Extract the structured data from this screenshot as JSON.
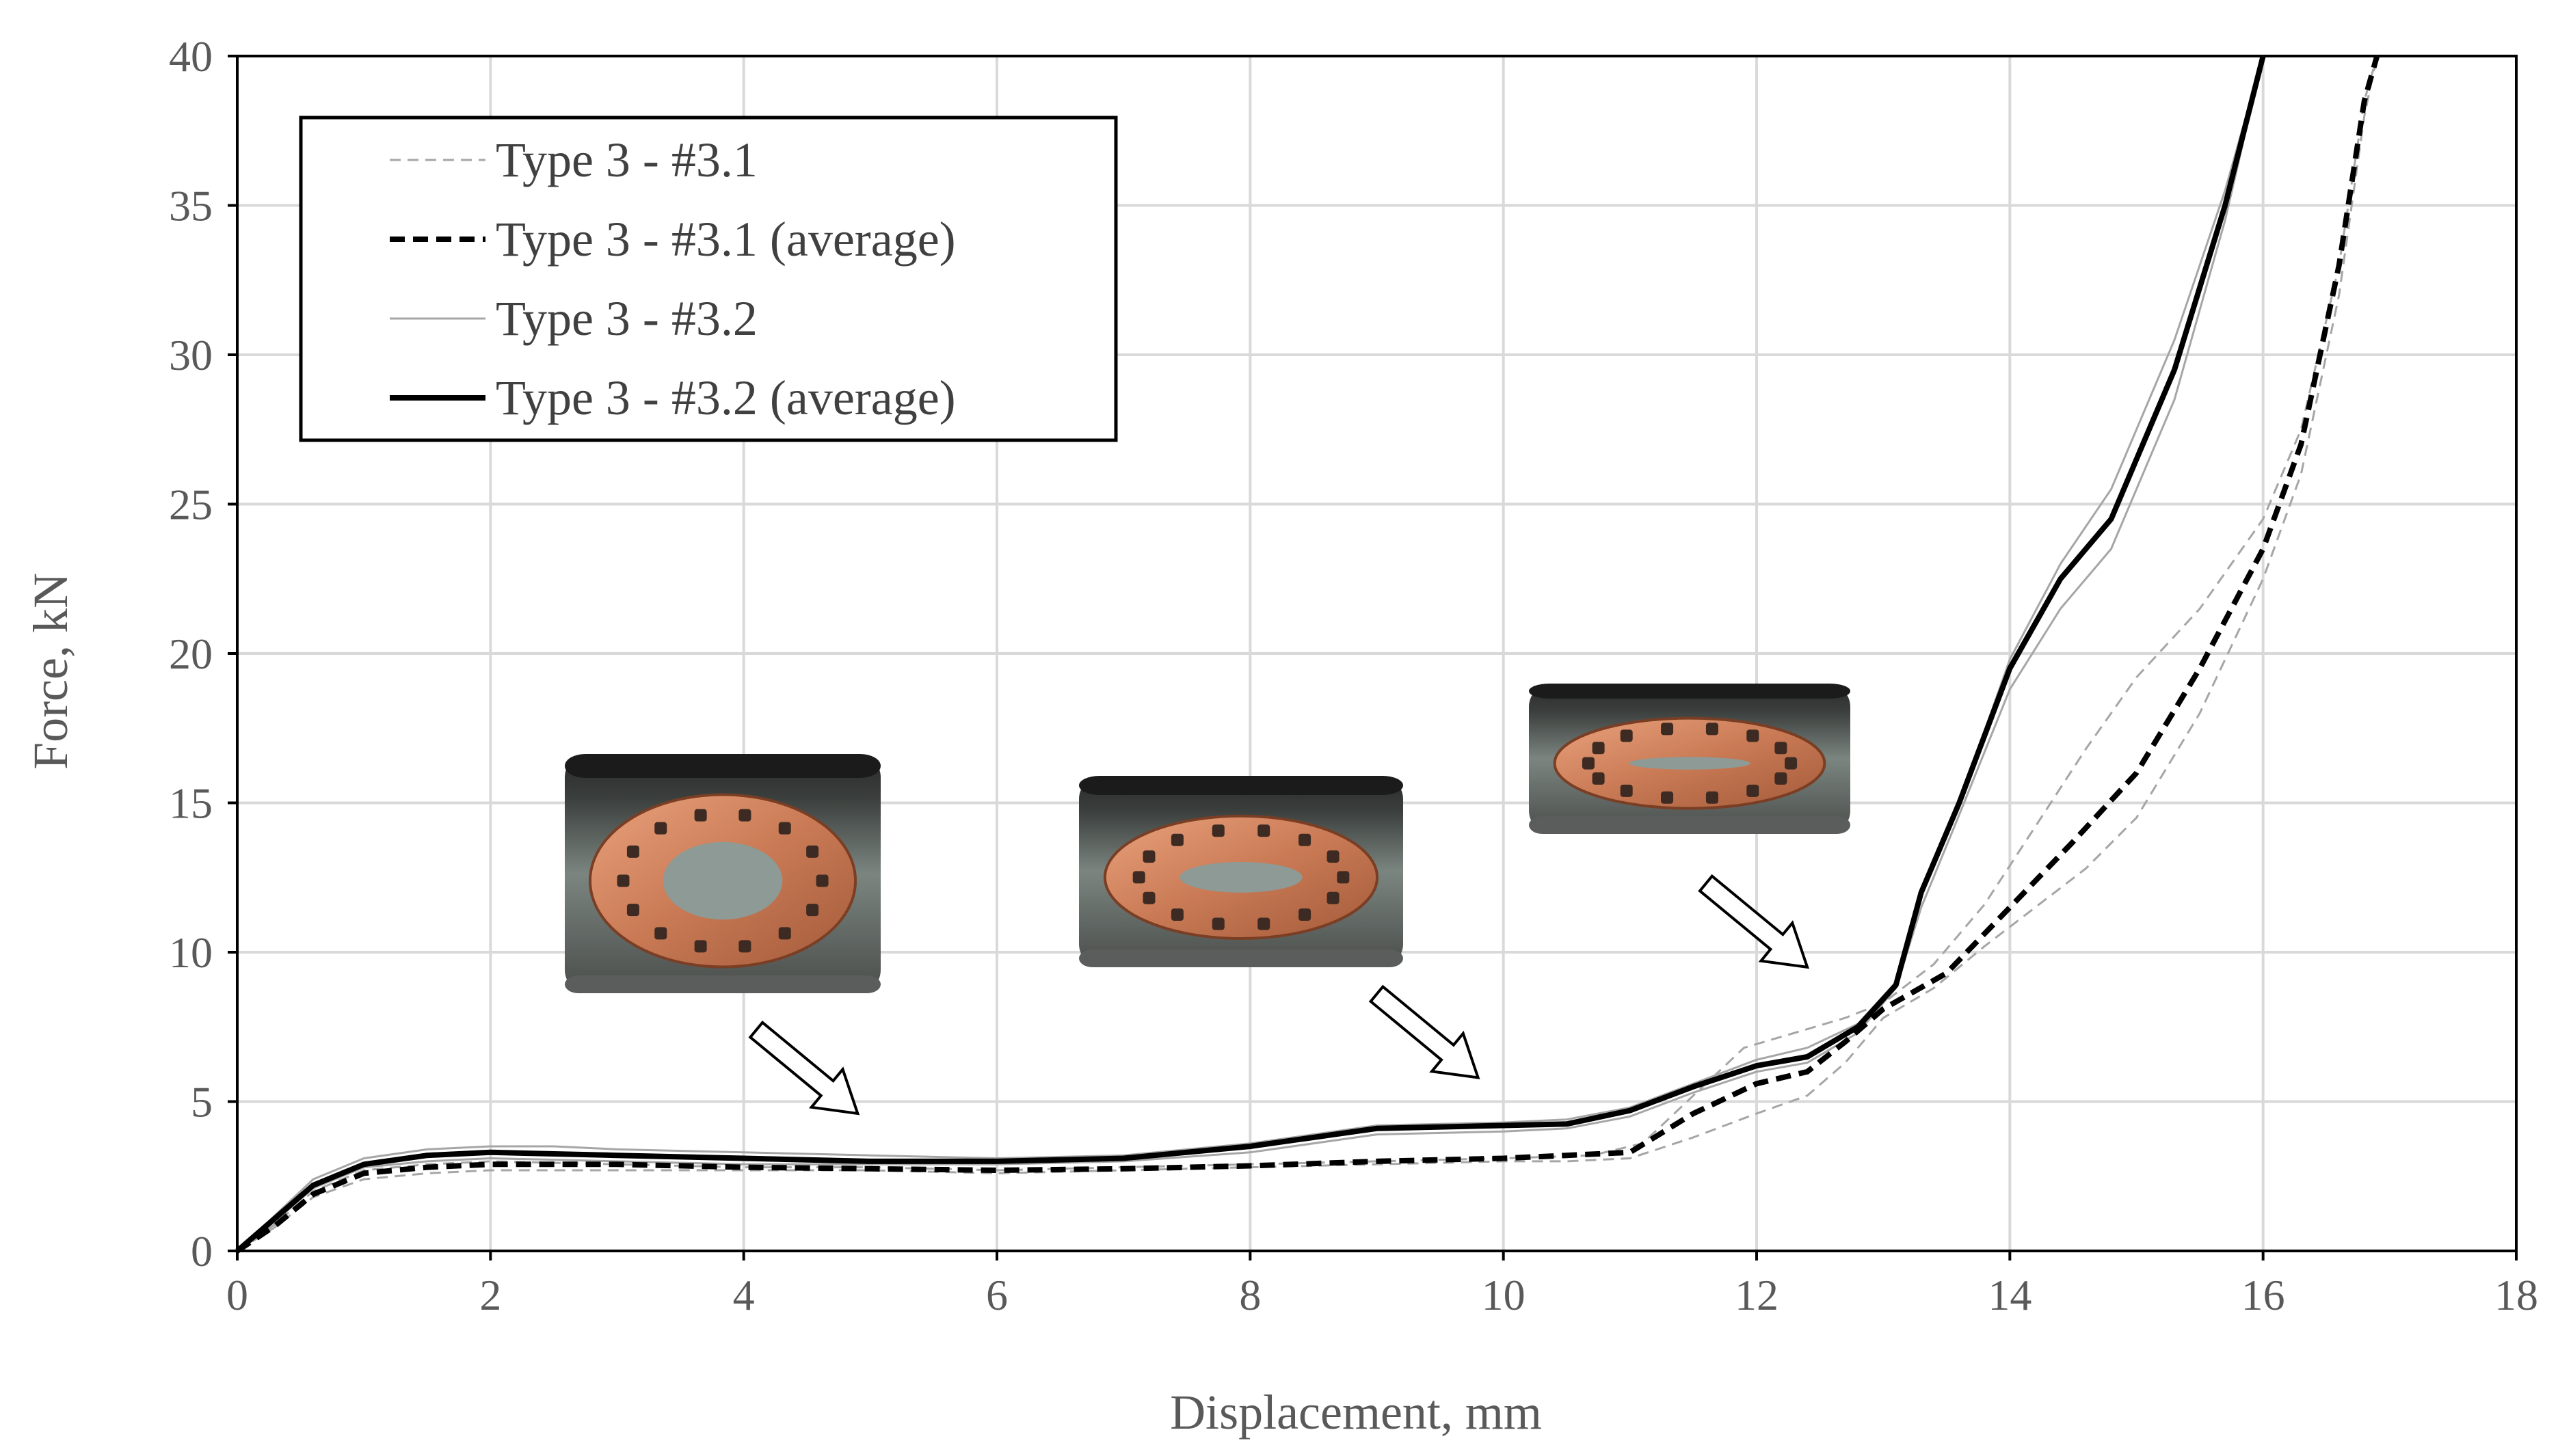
{
  "chart_data": {
    "type": "line",
    "title": "",
    "xlabel": "Displacement, mm",
    "ylabel": "Force, kN",
    "xlim": [
      0,
      18
    ],
    "ylim": [
      0,
      40
    ],
    "x_ticks": [
      0,
      2,
      4,
      6,
      8,
      10,
      12,
      14,
      16,
      18
    ],
    "y_ticks": [
      0,
      5,
      10,
      15,
      20,
      25,
      30,
      35,
      40
    ],
    "grid": true,
    "legend_position": "top-left",
    "series": [
      {
        "name": "Type 3 - #3.1",
        "style": "thin-dashed",
        "color": "#a6a6a6",
        "points": [
          [
            0,
            0
          ],
          [
            0.3,
            0.8
          ],
          [
            0.6,
            1.8
          ],
          [
            1,
            2.4
          ],
          [
            1.5,
            2.6
          ],
          [
            2,
            2.7
          ],
          [
            3,
            2.7
          ],
          [
            4,
            2.7
          ],
          [
            5,
            2.7
          ],
          [
            6,
            2.6
          ],
          [
            7,
            2.7
          ],
          [
            8,
            2.8
          ],
          [
            9,
            2.9
          ],
          [
            10,
            3.0
          ],
          [
            10.5,
            3.0
          ],
          [
            11,
            3.1
          ],
          [
            11.5,
            3.8
          ],
          [
            12,
            4.6
          ],
          [
            12.4,
            5.2
          ],
          [
            12.7,
            6.3
          ],
          [
            13,
            7.8
          ],
          [
            13.4,
            8.8
          ],
          [
            13.8,
            10.2
          ],
          [
            14.2,
            11.5
          ],
          [
            14.6,
            12.8
          ],
          [
            15,
            14.5
          ],
          [
            15.5,
            18
          ],
          [
            16,
            22.5
          ],
          [
            16.3,
            26
          ],
          [
            16.6,
            32
          ],
          [
            16.8,
            38
          ],
          [
            16.9,
            40
          ]
        ]
      },
      {
        "name": "",
        "style": "thin-dashed",
        "color": "#a6a6a6",
        "points": [
          [
            0,
            0
          ],
          [
            0.3,
            0.9
          ],
          [
            0.6,
            2.0
          ],
          [
            1,
            2.7
          ],
          [
            1.5,
            2.9
          ],
          [
            2,
            3.0
          ],
          [
            3,
            2.9
          ],
          [
            4,
            2.8
          ],
          [
            5,
            2.8
          ],
          [
            6,
            2.7
          ],
          [
            7,
            2.8
          ],
          [
            8,
            2.9
          ],
          [
            9,
            3.0
          ],
          [
            10,
            3.1
          ],
          [
            10.7,
            3.2
          ],
          [
            11.1,
            3.6
          ],
          [
            11.5,
            5.2
          ],
          [
            11.9,
            6.8
          ],
          [
            12.3,
            7.3
          ],
          [
            12.7,
            7.8
          ],
          [
            13,
            8.3
          ],
          [
            13.4,
            9.6
          ],
          [
            13.8,
            11.6
          ],
          [
            14.2,
            14.2
          ],
          [
            14.6,
            16.8
          ],
          [
            15,
            19.2
          ],
          [
            15.5,
            21.5
          ],
          [
            16,
            24.5
          ],
          [
            16.3,
            27.5
          ],
          [
            16.6,
            33
          ],
          [
            16.8,
            38.5
          ],
          [
            16.9,
            40
          ]
        ]
      },
      {
        "name": "Type 3 - #3.1 (average)",
        "style": "thick-dashed",
        "color": "#000000",
        "points": [
          [
            0,
            0
          ],
          [
            0.3,
            0.85
          ],
          [
            0.6,
            1.9
          ],
          [
            1,
            2.6
          ],
          [
            1.5,
            2.8
          ],
          [
            2,
            2.9
          ],
          [
            3,
            2.9
          ],
          [
            4,
            2.8
          ],
          [
            5,
            2.75
          ],
          [
            6,
            2.7
          ],
          [
            7,
            2.75
          ],
          [
            8,
            2.85
          ],
          [
            9,
            3.0
          ],
          [
            10,
            3.1
          ],
          [
            10.5,
            3.2
          ],
          [
            11,
            3.3
          ],
          [
            11.5,
            4.6
          ],
          [
            12,
            5.6
          ],
          [
            12.4,
            6.0
          ],
          [
            12.7,
            7.0
          ],
          [
            13,
            8.1
          ],
          [
            13.5,
            9.3
          ],
          [
            14,
            11.5
          ],
          [
            14.5,
            13.7
          ],
          [
            15,
            16.0
          ],
          [
            15.5,
            19.5
          ],
          [
            16,
            23.5
          ],
          [
            16.3,
            27
          ],
          [
            16.6,
            33
          ],
          [
            16.8,
            38.5
          ],
          [
            16.9,
            40
          ]
        ]
      },
      {
        "name": "Type 3 - #3.2",
        "style": "thin-solid",
        "color": "#a6a6a6",
        "points": [
          [
            0,
            0
          ],
          [
            0.3,
            1.2
          ],
          [
            0.6,
            2.4
          ],
          [
            1,
            3.1
          ],
          [
            1.5,
            3.4
          ],
          [
            2,
            3.5
          ],
          [
            2.5,
            3.5
          ],
          [
            3,
            3.4
          ],
          [
            4,
            3.3
          ],
          [
            5,
            3.2
          ],
          [
            6,
            3.1
          ],
          [
            7,
            3.2
          ],
          [
            8,
            3.6
          ],
          [
            9,
            4.2
          ],
          [
            10,
            4.3
          ],
          [
            10.5,
            4.4
          ],
          [
            11,
            4.8
          ],
          [
            11.5,
            5.6
          ],
          [
            12,
            6.4
          ],
          [
            12.4,
            6.8
          ],
          [
            12.8,
            7.6
          ],
          [
            13.1,
            9.0
          ],
          [
            13.3,
            12.0
          ],
          [
            13.6,
            15.0
          ],
          [
            14,
            19.8
          ],
          [
            14.4,
            23.0
          ],
          [
            14.8,
            25.5
          ],
          [
            15.3,
            30.5
          ],
          [
            15.7,
            35.5
          ],
          [
            16,
            40
          ]
        ]
      },
      {
        "name": "",
        "style": "thin-solid",
        "color": "#a6a6a6",
        "points": [
          [
            0,
            0
          ],
          [
            0.3,
            1.0
          ],
          [
            0.6,
            2.1
          ],
          [
            1,
            2.8
          ],
          [
            1.5,
            3.0
          ],
          [
            2,
            3.1
          ],
          [
            3,
            3.0
          ],
          [
            4,
            2.9
          ],
          [
            5,
            2.9
          ],
          [
            6,
            2.9
          ],
          [
            7,
            3.0
          ],
          [
            8,
            3.3
          ],
          [
            9,
            3.9
          ],
          [
            10,
            4.0
          ],
          [
            10.5,
            4.1
          ],
          [
            11,
            4.5
          ],
          [
            11.5,
            5.3
          ],
          [
            12,
            6.0
          ],
          [
            12.4,
            6.3
          ],
          [
            12.8,
            7.3
          ],
          [
            13.1,
            8.8
          ],
          [
            13.3,
            11.5
          ],
          [
            13.6,
            14.6
          ],
          [
            14,
            18.8
          ],
          [
            14.4,
            21.5
          ],
          [
            14.8,
            23.5
          ],
          [
            15.3,
            28.5
          ],
          [
            15.7,
            34.5
          ],
          [
            16,
            40
          ]
        ]
      },
      {
        "name": "Type 3 - #3.2 (average)",
        "style": "thick-solid",
        "color": "#000000",
        "points": [
          [
            0,
            0
          ],
          [
            0.3,
            1.1
          ],
          [
            0.6,
            2.2
          ],
          [
            1,
            2.9
          ],
          [
            1.5,
            3.2
          ],
          [
            2,
            3.3
          ],
          [
            3,
            3.2
          ],
          [
            4,
            3.1
          ],
          [
            5,
            3.0
          ],
          [
            6,
            3.0
          ],
          [
            7,
            3.1
          ],
          [
            8,
            3.5
          ],
          [
            9,
            4.1
          ],
          [
            10,
            4.2
          ],
          [
            10.5,
            4.25
          ],
          [
            11,
            4.7
          ],
          [
            11.5,
            5.5
          ],
          [
            12,
            6.2
          ],
          [
            12.4,
            6.5
          ],
          [
            12.8,
            7.5
          ],
          [
            13.1,
            8.9
          ],
          [
            13.3,
            12.0
          ],
          [
            13.6,
            15.0
          ],
          [
            14,
            19.5
          ],
          [
            14.4,
            22.5
          ],
          [
            14.8,
            24.5
          ],
          [
            15.3,
            29.5
          ],
          [
            15.7,
            35
          ],
          [
            16,
            40
          ]
        ]
      }
    ],
    "insets": [
      {
        "name": "specimen-photo-1"
      },
      {
        "name": "specimen-photo-2"
      },
      {
        "name": "specimen-photo-3"
      }
    ],
    "arrows": [
      {
        "name": "arrow-1",
        "from": [
          4.1,
          7.4
        ],
        "to": [
          4.9,
          4.6
        ]
      },
      {
        "name": "arrow-2",
        "from": [
          9.0,
          8.6
        ],
        "to": [
          9.8,
          5.8
        ]
      },
      {
        "name": "arrow-3",
        "from": [
          11.6,
          12.3
        ],
        "to": [
          12.4,
          9.5
        ]
      }
    ]
  }
}
